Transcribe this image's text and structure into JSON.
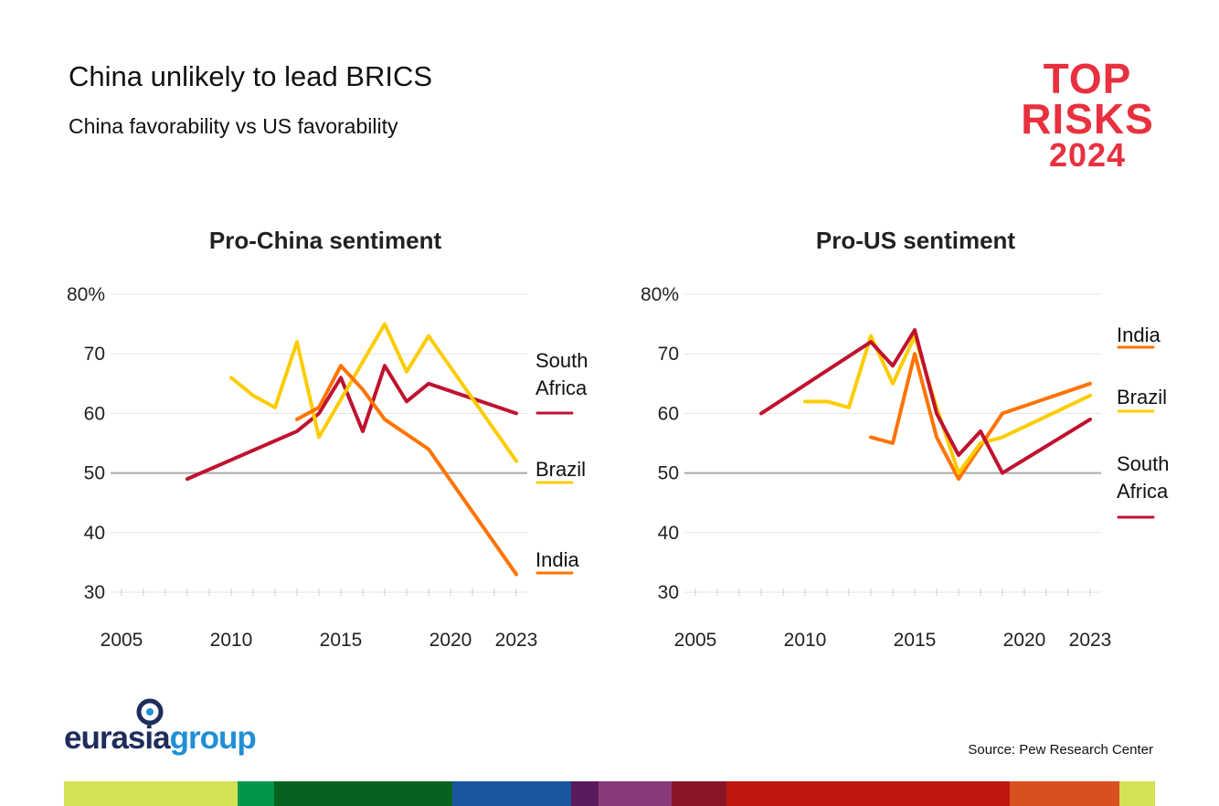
{
  "header": {
    "title": "China unlikely to lead BRICS",
    "subtitle": "China favorability vs US favorability"
  },
  "logo": {
    "line1": "TOP",
    "line2": "RISKS",
    "line3": "2024",
    "color": "#e8303f"
  },
  "brand": {
    "name_part1": "eurasia",
    "name_part2": "group"
  },
  "source": "Source: Pew Research Center",
  "colors": {
    "South Africa": "#c0122f",
    "Brazil": "#fccc00",
    "India": "#ff7300"
  },
  "chart_data": [
    {
      "type": "line",
      "title": "Pro-China sentiment",
      "ylim": [
        30,
        80
      ],
      "yticks": [
        "80%",
        "70",
        "60",
        "50",
        "40",
        "30"
      ],
      "xlim": [
        2005,
        2023
      ],
      "xticks": [
        "2005",
        "2010",
        "2015",
        "2020",
        "2023"
      ],
      "grid": true,
      "series": [
        {
          "name": "South Africa",
          "label_lines": [
            "South",
            "Africa"
          ],
          "x": [
            2008,
            2013,
            2014,
            2015,
            2016,
            2017,
            2018,
            2019,
            2023
          ],
          "y": [
            49,
            57,
            60,
            66,
            57,
            68,
            62,
            65,
            60
          ]
        },
        {
          "name": "Brazil",
          "label_lines": [
            "Brazil"
          ],
          "x": [
            2010,
            2011,
            2012,
            2013,
            2014,
            2017,
            2018,
            2019,
            2023
          ],
          "y": [
            66,
            63,
            61,
            72,
            56,
            75,
            67,
            73,
            52
          ]
        },
        {
          "name": "India",
          "label_lines": [
            "India"
          ],
          "x": [
            2013,
            2014,
            2015,
            2016,
            2017,
            2019,
            2023
          ],
          "y": [
            59,
            61,
            68,
            64,
            59,
            54,
            33
          ]
        }
      ]
    },
    {
      "type": "line",
      "title": "Pro-US sentiment",
      "ylim": [
        30,
        80
      ],
      "yticks": [
        "80%",
        "70",
        "60",
        "50",
        "40",
        "30"
      ],
      "xlim": [
        2005,
        2023
      ],
      "xticks": [
        "2005",
        "2010",
        "2015",
        "2020",
        "2023"
      ],
      "grid": true,
      "series": [
        {
          "name": "India",
          "label_lines": [
            "India"
          ],
          "x": [
            2013,
            2014,
            2015,
            2016,
            2017,
            2019,
            2023
          ],
          "y": [
            56,
            55,
            70,
            56,
            49,
            60,
            65
          ]
        },
        {
          "name": "Brazil",
          "label_lines": [
            "Brazil"
          ],
          "x": [
            2010,
            2011,
            2012,
            2013,
            2014,
            2015,
            2016,
            2017,
            2018,
            2019,
            2023
          ],
          "y": [
            62,
            62,
            61,
            73,
            65,
            73,
            61,
            50,
            55,
            56,
            63
          ]
        },
        {
          "name": "South Africa",
          "label_lines": [
            "South",
            "Africa"
          ],
          "x": [
            2008,
            2013,
            2014,
            2015,
            2016,
            2017,
            2018,
            2019,
            2023
          ],
          "y": [
            60,
            72,
            68,
            74,
            60,
            53,
            57,
            50,
            59
          ]
        }
      ]
    }
  ]
}
